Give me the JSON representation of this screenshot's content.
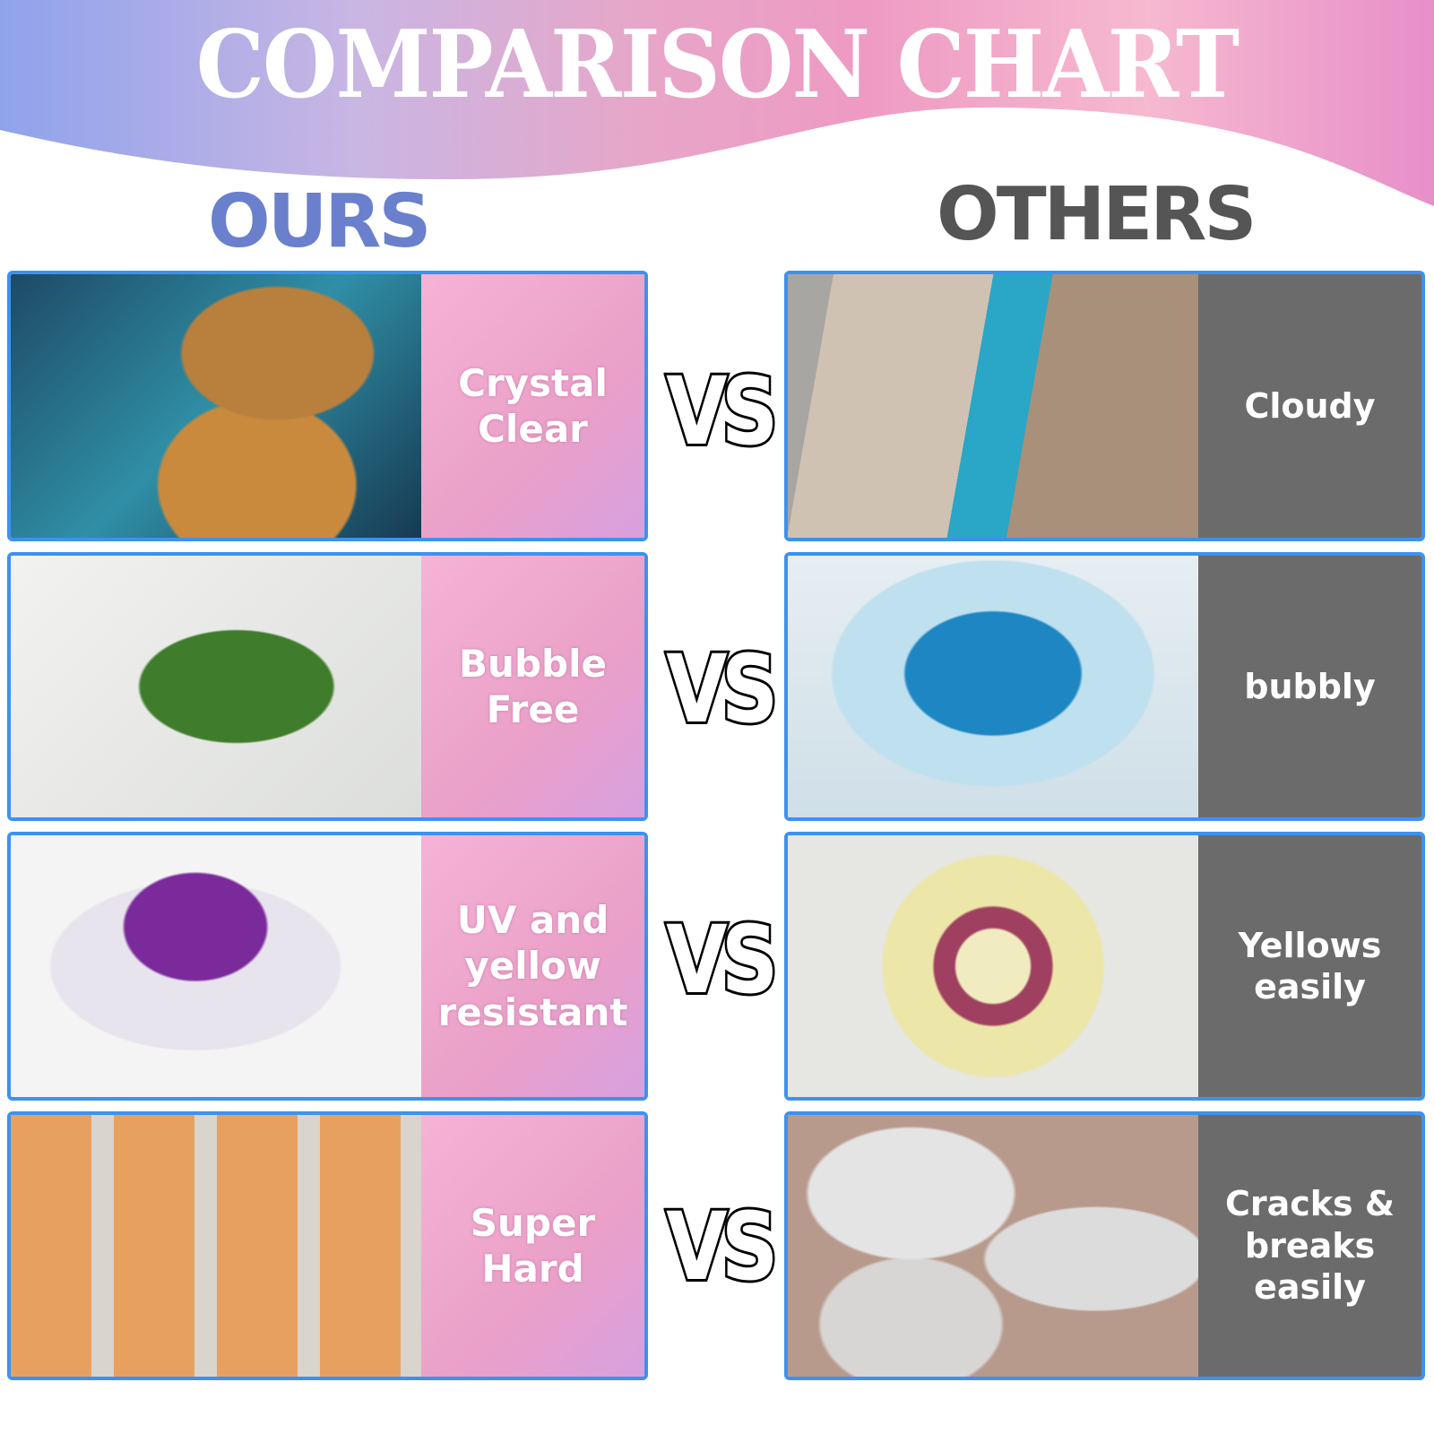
{
  "title": "COMPARISON CHART",
  "ours_heading": "OURS",
  "others_heading": "OTHERS",
  "vs_label": "VS",
  "colors": {
    "ours_heading": "#6a80cc",
    "others_heading": "#555555",
    "card_border": "#3d92ef",
    "others_panel": "#6b6b6b"
  },
  "rows": [
    {
      "ours": "Crystal Clear",
      "ours_image": "resin river table with wood burl and turquoise resin",
      "others": "Cloudy",
      "others_image": "cloudy blue resin river table"
    },
    {
      "ours": "Bubble Free",
      "ours_image": "fern leaf in clear resin",
      "others": "bubbly",
      "others_image": "blue resin with bubbles"
    },
    {
      "ours": "UV and yellow resistant",
      "ours_image": "purple flowers and glitter in clear resin",
      "others": "Yellows easily",
      "others_image": "yellowed resin with dried flower wreath"
    },
    {
      "ours": "Super Hard",
      "ours_image": "resin bookmarks with autumn leaves",
      "others": "Cracks & breaks easily",
      "others_image": "cracked clear resin hearts"
    }
  ]
}
